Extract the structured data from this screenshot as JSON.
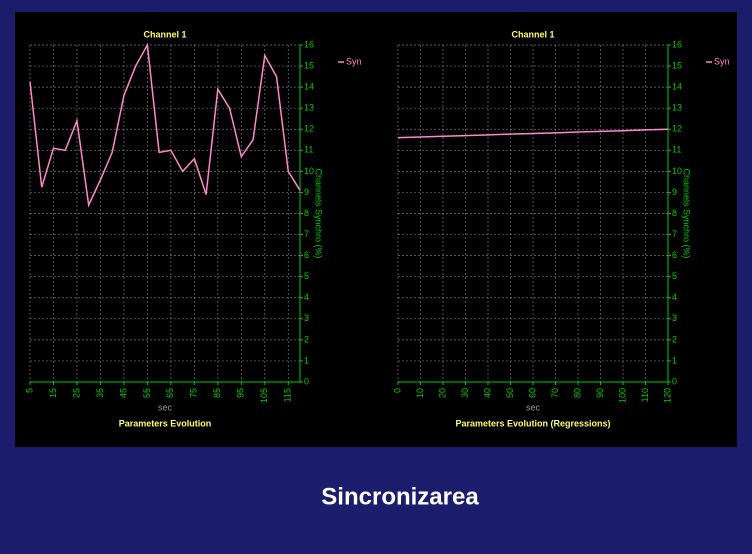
{
  "chart_data": [
    {
      "type": "line",
      "title": "Channel 1",
      "xlabel": "sec",
      "ylabel": "Channels Synchro (%)",
      "footer": "Parameters Evolution",
      "x": [
        5,
        10,
        15,
        20,
        25,
        30,
        35,
        40,
        45,
        50,
        55,
        60,
        65,
        70,
        75,
        80,
        85,
        90,
        95,
        100,
        105,
        110,
        115,
        120
      ],
      "series": [
        {
          "name": "Syn",
          "color": "#ff88cc",
          "values": [
            14.25,
            9.25,
            11.1,
            11.0,
            12.4,
            8.4,
            9.6,
            10.9,
            13.6,
            15.0,
            16.0,
            10.9,
            11.0,
            10.0,
            10.6,
            8.9,
            13.9,
            13.0,
            10.7,
            11.5,
            15.5,
            14.5,
            10.0,
            9.1
          ]
        }
      ],
      "xlim": [
        5,
        120
      ],
      "xticks": [
        5,
        15,
        25,
        35,
        45,
        55,
        65,
        75,
        85,
        95,
        105,
        115
      ],
      "ylim": [
        0,
        16
      ],
      "yticks": [
        0,
        1,
        2,
        3,
        4,
        5,
        6,
        7,
        8,
        9,
        10,
        11,
        12,
        13,
        14,
        15,
        16
      ],
      "grid": true
    },
    {
      "type": "line",
      "title": "Channel 1",
      "xlabel": "sec",
      "ylabel": "Channels Synchro (%)",
      "footer": "Parameters Evolution (Regressions)",
      "x": [
        0,
        10,
        20,
        30,
        40,
        50,
        60,
        70,
        80,
        90,
        100,
        110,
        120
      ],
      "series": [
        {
          "name": "Syn",
          "color": "#ff88cc",
          "values": [
            11.6,
            11.63,
            11.67,
            11.7,
            11.73,
            11.77,
            11.8,
            11.83,
            11.87,
            11.9,
            11.93,
            11.97,
            12.0
          ]
        }
      ],
      "xlim": [
        0,
        120
      ],
      "xticks": [
        0,
        10,
        20,
        30,
        40,
        50,
        60,
        70,
        80,
        90,
        100,
        110,
        120
      ],
      "ylim": [
        0,
        16
      ],
      "yticks": [
        0,
        1,
        2,
        3,
        4,
        5,
        6,
        7,
        8,
        9,
        10,
        11,
        12,
        13,
        14,
        15,
        16
      ],
      "grid": true
    }
  ],
  "caption": "Sincronizarea"
}
